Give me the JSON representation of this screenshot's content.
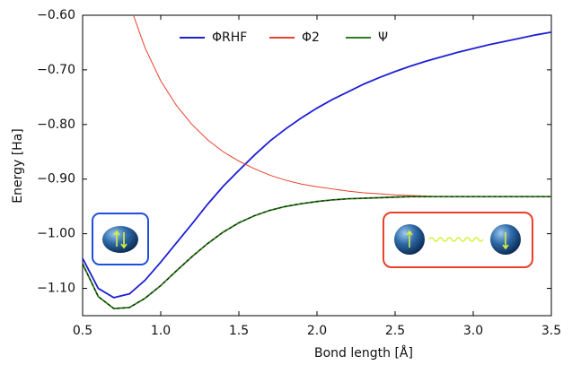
{
  "chart_data": {
    "type": "line",
    "xlabel": "Bond length [Å]",
    "ylabel": "Energy [Ha]",
    "x": [
      0.5,
      0.6,
      0.7,
      0.8,
      0.9,
      1.0,
      1.1,
      1.2,
      1.3,
      1.4,
      1.5,
      1.6,
      1.7,
      1.8,
      1.9,
      2.0,
      2.1,
      2.2,
      2.3,
      2.4,
      2.5,
      2.6,
      2.7,
      2.8,
      2.9,
      3.0,
      3.1,
      3.2,
      3.3,
      3.4,
      3.5
    ],
    "series": [
      {
        "name": "ΦRHF",
        "color": "#1f1fd6",
        "values": [
          -1.045,
          -1.1,
          -1.117,
          -1.11,
          -1.085,
          -1.052,
          -1.017,
          -0.982,
          -0.946,
          -0.913,
          -0.884,
          -0.856,
          -0.83,
          -0.808,
          -0.788,
          -0.77,
          -0.754,
          -0.74,
          -0.726,
          -0.714,
          -0.703,
          -0.693,
          -0.684,
          -0.676,
          -0.668,
          -0.661,
          -0.654,
          -0.648,
          -0.642,
          -0.636,
          -0.631
        ]
      },
      {
        "name": "Φ2",
        "color": "#e8412c",
        "values": [
          null,
          null,
          null,
          -0.58,
          -0.66,
          -0.72,
          -0.765,
          -0.8,
          -0.828,
          -0.85,
          -0.867,
          -0.881,
          -0.893,
          -0.902,
          -0.909,
          -0.914,
          -0.918,
          -0.922,
          -0.925,
          -0.927,
          -0.929,
          -0.93,
          -0.931,
          -0.932,
          -0.932,
          -0.932,
          -0.932,
          -0.932,
          -0.932,
          -0.932,
          -0.932
        ]
      },
      {
        "name": "Ψ",
        "color": "#2e7d1e",
        "values": [
          -1.055,
          -1.115,
          -1.137,
          -1.135,
          -1.118,
          -1.095,
          -1.068,
          -1.042,
          -1.018,
          -0.997,
          -0.98,
          -0.967,
          -0.957,
          -0.95,
          -0.945,
          -0.941,
          -0.938,
          -0.936,
          -0.935,
          -0.934,
          -0.933,
          -0.932,
          -0.932,
          -0.932,
          -0.932,
          -0.932,
          -0.932,
          -0.932,
          -0.932,
          -0.932,
          -0.932
        ]
      }
    ],
    "xlim": [
      0.5,
      3.5
    ],
    "xticks": [
      0.5,
      {
        "value": 1,
        "label": "1.0"
      },
      1.5,
      {
        "value": 2,
        "label": "2.0"
      },
      2.5,
      {
        "value": 3,
        "label": "3.0"
      },
      3.5
    ],
    "ylim": [
      -1.15,
      -0.6
    ],
    "yticks": [
      {
        "value": -1.1,
        "label": "−1.10"
      },
      {
        "value": -1.0,
        "label": "−1.00"
      },
      {
        "value": -0.9,
        "label": "−0.90"
      },
      {
        "value": -0.8,
        "label": "−0.80"
      },
      {
        "value": -0.7,
        "label": "−0.70"
      },
      {
        "value": -0.6,
        "label": "−0.60"
      }
    ],
    "grid": false
  }
}
